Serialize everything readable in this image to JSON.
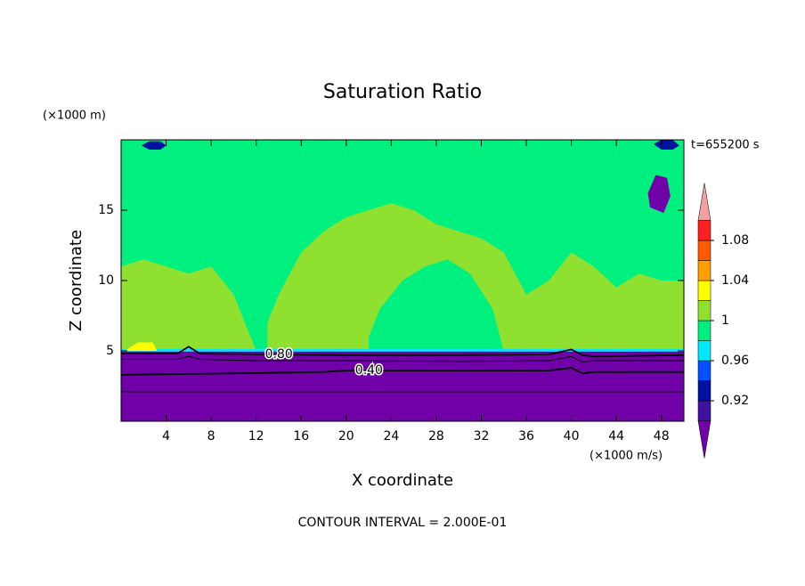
{
  "chart_data": {
    "type": "contour",
    "title": "Saturation Ratio",
    "y_unit": "(×1000 m)",
    "x_unit": "(×1000 m/s)",
    "time_label": "t=655200 s",
    "xlabel": "X coordinate",
    "ylabel": "Z coordinate",
    "footer": "CONTOUR INTERVAL = 2.000E-01",
    "xlim": [
      0,
      50
    ],
    "ylim": [
      0,
      20
    ],
    "xticks": [
      4,
      8,
      12,
      16,
      20,
      24,
      28,
      32,
      36,
      40,
      44,
      48
    ],
    "yticks": [
      5,
      10,
      15
    ],
    "colorbar": {
      "levels": [
        0.9,
        0.92,
        0.94,
        0.96,
        0.98,
        1.0,
        1.02,
        1.04,
        1.06,
        1.08,
        1.1
      ],
      "colors": [
        "#4010a0",
        "#0010a0",
        "#0050ff",
        "#00e8ff",
        "#00f080",
        "#90e030",
        "#ffff00",
        "#ffa000",
        "#ff5a00",
        "#ff2020"
      ],
      "under_color": "#7000a8",
      "over_color": "#f0a0a0",
      "ticks": [
        0.92,
        0.96,
        1,
        1.04,
        1.08
      ]
    },
    "regions": [
      {
        "value": 0.99,
        "x": [
          0,
          50,
          50,
          0
        ],
        "y": [
          5,
          5,
          20,
          20
        ]
      },
      {
        "value": 1.01,
        "x": [
          0,
          1,
          2,
          3,
          4,
          5,
          6,
          7,
          8,
          9,
          10,
          11,
          12,
          10,
          8,
          6,
          4,
          2,
          0
        ],
        "y": [
          5,
          5,
          5,
          5,
          5,
          5,
          5,
          5,
          5,
          5,
          5,
          5,
          5,
          9,
          11,
          10.5,
          11,
          11.5,
          11
        ]
      },
      {
        "value": 1.01,
        "x": [
          13,
          36,
          36,
          34,
          32,
          30,
          28,
          26,
          24,
          22,
          20,
          18,
          16,
          14,
          13
        ],
        "y": [
          5,
          5,
          9,
          12,
          13,
          13.5,
          14,
          15,
          15.5,
          15,
          14.5,
          13.5,
          12,
          9,
          7
        ]
      },
      {
        "value": 1.01,
        "x": [
          36,
          50,
          50,
          48,
          46,
          44,
          42,
          40,
          38,
          36
        ],
        "y": [
          5,
          5,
          10,
          10,
          10.5,
          9.5,
          11,
          12,
          10,
          9
        ]
      },
      {
        "value": 0.99,
        "x": [
          22,
          34,
          33,
          31,
          29,
          27,
          25,
          23,
          22
        ],
        "y": [
          5,
          5,
          8,
          10.5,
          11.5,
          11,
          10,
          8,
          6
        ]
      },
      {
        "value": 0.97,
        "x": [
          0,
          50,
          50,
          0
        ],
        "y": [
          4.95,
          4.95,
          5.15,
          5.15
        ]
      },
      {
        "value": 1.03,
        "x": [
          0.3,
          1.5,
          2.8,
          3.2
        ],
        "y": [
          5,
          5.6,
          5.6,
          5
        ]
      },
      {
        "value": 0.93,
        "x": [
          1.8,
          2.5,
          3.5,
          4.0,
          3.5,
          2.5
        ],
        "y": [
          19.6,
          19.9,
          19.9,
          19.6,
          19.3,
          19.3
        ]
      },
      {
        "value": 0.93,
        "x": [
          47.3,
          48.0,
          49.0,
          49.6,
          49.0,
          48.0
        ],
        "y": [
          19.7,
          20,
          20,
          19.6,
          19.3,
          19.3
        ]
      },
      {
        "value": 0.89,
        "x": [
          46.8,
          47.5,
          48.5,
          48.8,
          48.2,
          47.0
        ],
        "y": [
          16.2,
          17.5,
          17.3,
          16.0,
          14.8,
          15.2
        ]
      },
      {
        "value": 0.5,
        "x": [
          0,
          50,
          50,
          0
        ],
        "y": [
          0,
          0,
          4.95,
          4.95
        ]
      }
    ],
    "contours": [
      {
        "level": 0.8,
        "level_label": "0.80",
        "x": [
          0,
          5,
          6,
          7,
          12,
          20,
          30,
          38,
          40,
          41,
          42,
          50
        ],
        "y": [
          4.8,
          4.8,
          5.3,
          4.8,
          4.75,
          4.7,
          4.7,
          4.75,
          5.1,
          4.7,
          4.6,
          4.7
        ]
      },
      {
        "level": 0.6,
        "x": [
          0,
          5,
          6,
          7,
          12,
          20,
          30,
          38,
          40,
          41,
          42,
          50
        ],
        "y": [
          4.4,
          4.4,
          4.6,
          4.4,
          4.3,
          4.3,
          4.25,
          4.3,
          4.6,
          4.2,
          4.3,
          4.3
        ]
      },
      {
        "level": 0.4,
        "level_label": "0.40",
        "x": [
          0,
          10,
          18,
          20,
          24,
          30,
          38,
          40,
          41,
          42,
          50
        ],
        "y": [
          3.3,
          3.4,
          3.5,
          3.6,
          3.6,
          3.6,
          3.6,
          3.8,
          3.4,
          3.5,
          3.5
        ]
      },
      {
        "level": 0.2,
        "x": [
          0,
          10,
          20,
          30,
          40,
          50
        ],
        "y": [
          2.1,
          2.1,
          2.1,
          2.1,
          2.1,
          2.1
        ]
      }
    ]
  }
}
